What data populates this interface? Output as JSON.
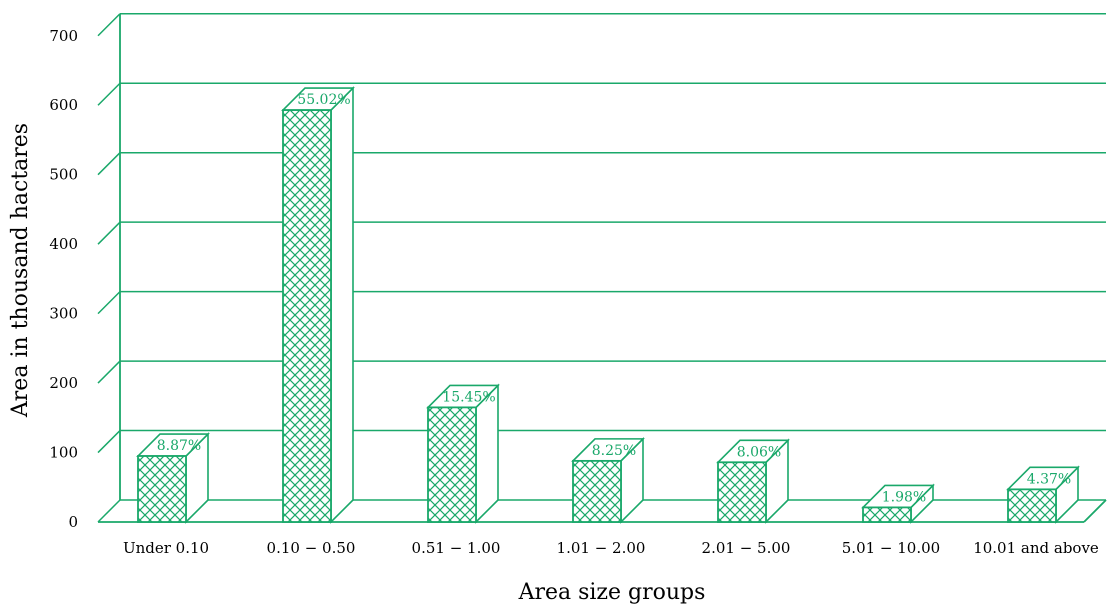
{
  "chart_data": {
    "type": "bar",
    "xlabel": "Area size groups",
    "ylabel": "Area in thousand hactares",
    "ylim": [
      0,
      700
    ],
    "yticks": [
      0,
      100,
      200,
      300,
      400,
      500,
      600,
      700
    ],
    "categories": [
      "Under 0.10",
      "0.10 − 0.50",
      "0.51 − 1.00",
      "1.01 − 2.00",
      "2.01 − 5.00",
      "5.01 − 10.00",
      "10.01 and above"
    ],
    "values": [
      95,
      593,
      165,
      88,
      86,
      21,
      47
    ],
    "data_labels": [
      "8.87%",
      "55.02%",
      "15.45%",
      "8.25%",
      "8.06%",
      "1.98%",
      "4.37%"
    ],
    "grid": true,
    "style": "3d-bar",
    "fill_pattern": "crosshatch"
  },
  "colors": {
    "primary": "#1aa86a",
    "background": "#ffffff"
  }
}
